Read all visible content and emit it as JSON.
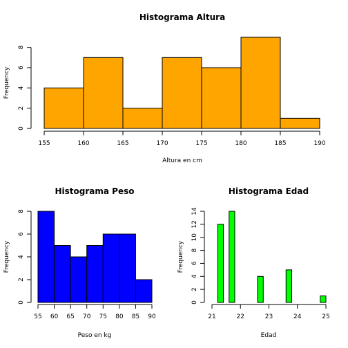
{
  "chart_data": [
    {
      "type": "bar",
      "title": "Histograma Altura",
      "xlabel": "Altura en cm",
      "ylabel": "Frequency",
      "color": "#FFA500",
      "bins": [
        [
          155,
          160
        ],
        [
          160,
          165
        ],
        [
          165,
          170
        ],
        [
          170,
          175
        ],
        [
          175,
          180
        ],
        [
          180,
          185
        ],
        [
          185,
          190
        ]
      ],
      "values": [
        4,
        7,
        2,
        7,
        6,
        9,
        1
      ],
      "xticks": [
        155,
        160,
        165,
        170,
        175,
        180,
        185,
        190
      ],
      "yticks": [
        0,
        2,
        4,
        6,
        8
      ],
      "xlim": [
        155,
        190
      ],
      "ylim": [
        0,
        9
      ]
    },
    {
      "type": "bar",
      "title": "Histograma Peso",
      "xlabel": "Peso en kg",
      "ylabel": "Frequency",
      "color": "#0000FF",
      "bins": [
        [
          55,
          60
        ],
        [
          60,
          65
        ],
        [
          65,
          70
        ],
        [
          70,
          75
        ],
        [
          75,
          80
        ],
        [
          80,
          85
        ],
        [
          85,
          90
        ]
      ],
      "values": [
        8,
        5,
        4,
        5,
        6,
        6,
        2
      ],
      "xticks": [
        55,
        60,
        65,
        70,
        75,
        80,
        85,
        90
      ],
      "yticks": [
        0,
        2,
        4,
        6,
        8
      ],
      "xlim": [
        55,
        90
      ],
      "ylim": [
        0,
        8
      ]
    },
    {
      "type": "bar",
      "title": "Histograma Edad",
      "xlabel": "Edad",
      "ylabel": "Frequency",
      "color": "#00FF00",
      "bins": [
        [
          21,
          21.2
        ],
        [
          21.2,
          21.4
        ],
        [
          21.4,
          21.6
        ],
        [
          21.6,
          21.8
        ],
        [
          21.8,
          22
        ],
        [
          22,
          22.2
        ],
        [
          22.2,
          22.4
        ],
        [
          22.4,
          22.6
        ],
        [
          22.6,
          22.8
        ],
        [
          22.8,
          23
        ],
        [
          23,
          23.2
        ],
        [
          23.2,
          23.4
        ],
        [
          23.4,
          23.6
        ],
        [
          23.6,
          23.8
        ],
        [
          23.8,
          24
        ],
        [
          24,
          24.2
        ],
        [
          24.2,
          24.4
        ],
        [
          24.4,
          24.6
        ],
        [
          24.6,
          24.8
        ],
        [
          24.8,
          25
        ]
      ],
      "values": [
        0,
        12,
        0,
        14,
        0,
        0,
        0,
        0,
        4,
        0,
        0,
        0,
        0,
        5,
        0,
        0,
        0,
        0,
        0,
        1
      ],
      "xticks": [
        21,
        22,
        23,
        24,
        25
      ],
      "yticks": [
        0,
        2,
        4,
        6,
        8,
        10,
        12,
        14
      ],
      "xlim": [
        21,
        25
      ],
      "ylim": [
        0,
        14
      ]
    }
  ]
}
